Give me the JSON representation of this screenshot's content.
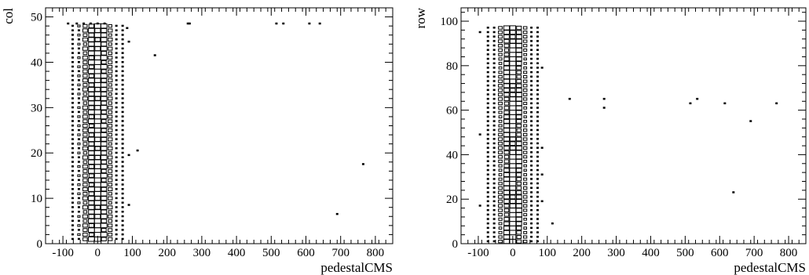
{
  "chart_data": [
    {
      "type": "heatmap",
      "style": "box",
      "xlabel": "pedestalCMS",
      "ylabel": "col",
      "xlim": [
        -150,
        850
      ],
      "ylim": [
        0,
        52
      ],
      "xticks": [
        -100,
        0,
        100,
        200,
        300,
        400,
        500,
        600,
        700,
        800
      ],
      "yticks": [
        0,
        10,
        20,
        30,
        40,
        50
      ],
      "bin_x_centers": [
        -90,
        -72,
        -54,
        -36,
        -18,
        0,
        18,
        36,
        54,
        72
      ],
      "dense_band": {
        "y_range": [
          1,
          48
        ],
        "y_step": 1,
        "column_rel_sizes": [
          0.0,
          0.12,
          0.35,
          0.65,
          0.85,
          0.95,
          0.85,
          0.6,
          0.25,
          0.08
        ]
      },
      "outliers": [
        {
          "x": -85,
          "y": 48.5
        },
        {
          "x": -60,
          "y": 48.5
        },
        {
          "x": -40,
          "y": 48.5
        },
        {
          "x": -20,
          "y": 48.5
        },
        {
          "x": 0,
          "y": 48.5
        },
        {
          "x": 20,
          "y": 48.5
        },
        {
          "x": 85,
          "y": 47.5
        },
        {
          "x": 90,
          "y": 44.5
        },
        {
          "x": 165,
          "y": 41.5
        },
        {
          "x": 260,
          "y": 48.5
        },
        {
          "x": 265,
          "y": 48.5
        },
        {
          "x": 515,
          "y": 48.5
        },
        {
          "x": 535,
          "y": 48.5
        },
        {
          "x": 610,
          "y": 48.5
        },
        {
          "x": 640,
          "y": 48.5
        },
        {
          "x": 115,
          "y": 20.5
        },
        {
          "x": 90,
          "y": 19.5
        },
        {
          "x": 765,
          "y": 17.5
        },
        {
          "x": 90,
          "y": 8.5
        },
        {
          "x": 690,
          "y": 6.5
        }
      ]
    },
    {
      "type": "heatmap",
      "style": "box",
      "xlabel": "pedestalCMS",
      "ylabel": "row",
      "xlim": [
        -150,
        850
      ],
      "ylim": [
        0,
        106
      ],
      "xticks": [
        -100,
        0,
        100,
        200,
        300,
        400,
        500,
        600,
        700,
        800
      ],
      "yticks": [
        0,
        20,
        40,
        60,
        80,
        100
      ],
      "bin_x_centers": [
        -90,
        -72,
        -54,
        -36,
        -18,
        0,
        18,
        36,
        54,
        72
      ],
      "dense_band": {
        "y_range": [
          1,
          97
        ],
        "y_step": 2,
        "column_rel_sizes": [
          0.0,
          0.1,
          0.3,
          0.55,
          0.8,
          0.95,
          0.8,
          0.5,
          0.2,
          0.06
        ]
      },
      "outliers": [
        {
          "x": -95,
          "y": 95
        },
        {
          "x": -95,
          "y": 49
        },
        {
          "x": -95,
          "y": 17
        },
        {
          "x": 85,
          "y": 79
        },
        {
          "x": 85,
          "y": 43
        },
        {
          "x": 85,
          "y": 31
        },
        {
          "x": 85,
          "y": 19
        },
        {
          "x": 115,
          "y": 9
        },
        {
          "x": 165,
          "y": 65
        },
        {
          "x": 265,
          "y": 65
        },
        {
          "x": 265,
          "y": 61
        },
        {
          "x": 515,
          "y": 63
        },
        {
          "x": 535,
          "y": 65
        },
        {
          "x": 615,
          "y": 63
        },
        {
          "x": 765,
          "y": 63
        },
        {
          "x": 690,
          "y": 55
        },
        {
          "x": 640,
          "y": 23
        }
      ]
    }
  ]
}
